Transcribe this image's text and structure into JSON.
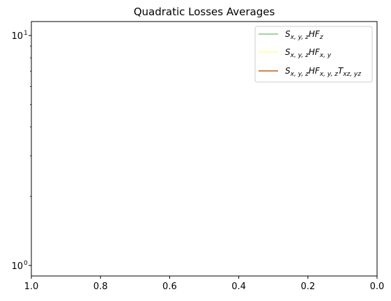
{
  "chart_data": {
    "type": "line",
    "title": "Quadratic Losses Averages",
    "xlabel": "",
    "ylabel": "",
    "xlim": [
      1.0,
      0.0
    ],
    "ylim": [
      0.9,
      11.5
    ],
    "yscale": "log",
    "x_ticks": [
      "1.0",
      "0.8",
      "0.6",
      "0.4",
      "0.2",
      "0.0"
    ],
    "y_ticks": [
      {
        "base": "10",
        "exp": "0"
      },
      {
        "base": "10",
        "exp": "1"
      }
    ],
    "legend_position": "top-right",
    "series": [
      {
        "name": "S_{x,y,z}HF_{z}",
        "main": "S",
        "sub1": "x, y, z",
        "mid": "HF",
        "sub2": "z",
        "mid2": "",
        "sub3": "",
        "color": "#7fc97f",
        "x": [],
        "y": []
      },
      {
        "name": "S_{x,y,z}HF_{x,y}",
        "main": "S",
        "sub1": "x, y, z",
        "mid": "HF",
        "sub2": "x, y",
        "mid2": "",
        "sub3": "",
        "color": "#ffff99",
        "x": [],
        "y": []
      },
      {
        "name": "S_{x,y,z}HF_{x,y,z}T_{xz,yz}",
        "main": "S",
        "sub1": "x, y, z",
        "mid": "HF",
        "sub2": "x, y, z",
        "mid2": "T",
        "sub3": "xz, yz",
        "color": "#bf5b17",
        "x": [],
        "y": []
      }
    ]
  }
}
